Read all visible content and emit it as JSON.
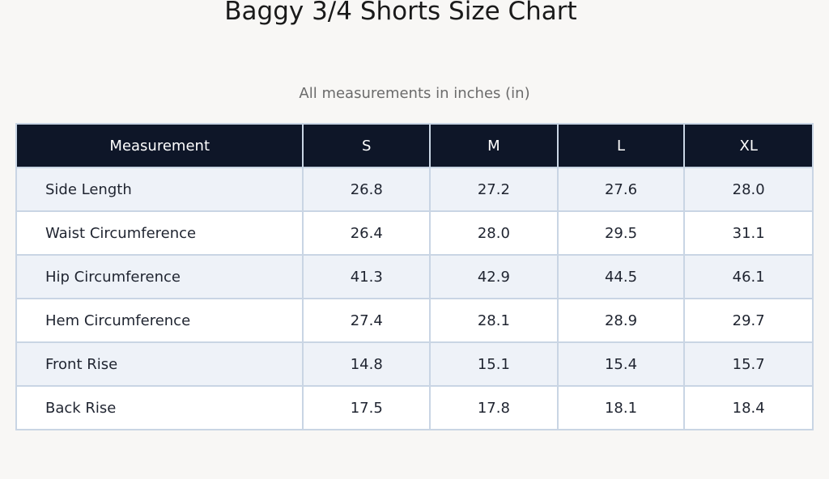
{
  "header": {
    "title": "Baggy 3/4 Shorts Size Chart",
    "subtitle": "All measurements in inches (in)"
  },
  "table": {
    "columns": [
      "Measurement",
      "S",
      "M",
      "L",
      "XL"
    ],
    "rows": [
      [
        "Side Length",
        "26.8",
        "27.2",
        "27.6",
        "28.0"
      ],
      [
        "Waist Circumference",
        "26.4",
        "28.0",
        "29.5",
        "31.1"
      ],
      [
        "Hip Circumference",
        "41.3",
        "42.9",
        "44.5",
        "46.1"
      ],
      [
        "Hem Circumference",
        "27.4",
        "28.1",
        "28.9",
        "29.7"
      ],
      [
        "Front Rise",
        "14.8",
        "15.1",
        "15.4",
        "15.7"
      ],
      [
        "Back Rise",
        "17.5",
        "17.8",
        "18.1",
        "18.4"
      ]
    ]
  }
}
